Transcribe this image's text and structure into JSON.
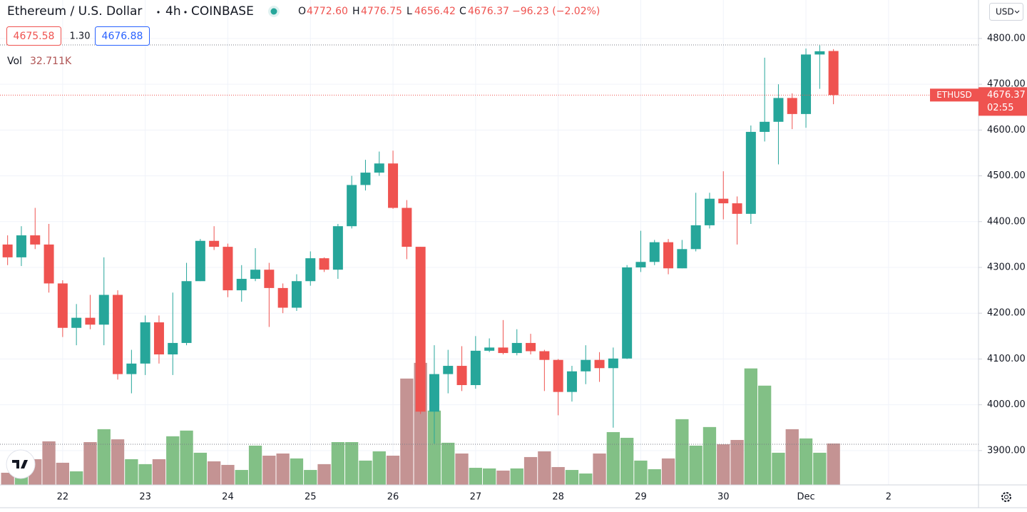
{
  "chart_data": {
    "type": "candlestick",
    "title": "Ethereum / U.S. Dollar",
    "interval": "4h",
    "exchange": "COINBASE",
    "currency": "USD",
    "symbol": "ETHUSD",
    "countdown": "02:55",
    "bid": "4675.58",
    "spread": "1.30",
    "ask": "4676.88",
    "ohlc_letters": [
      "O",
      "H",
      "L",
      "C"
    ],
    "last": {
      "open": "4772.60",
      "high": "4776.75",
      "low": "4656.42",
      "close": "4676.37",
      "change": "−96.23 (−2.02%)"
    },
    "up_color": "#26a69a",
    "down_color": "#ef5350",
    "grid": true,
    "ylim": [
      3825,
      4884
    ],
    "yticks": [
      {
        "value": 3900,
        "label": "3900.00"
      },
      {
        "value": 4000,
        "label": "4000.00"
      },
      {
        "value": 4100,
        "label": "4100.00"
      },
      {
        "value": 4200,
        "label": "4200.00"
      },
      {
        "value": 4300,
        "label": "4300.00"
      },
      {
        "value": 4400,
        "label": "4400.00"
      },
      {
        "value": 4500,
        "label": "4500.00"
      },
      {
        "value": 4600,
        "label": "4600.00"
      },
      {
        "value": 4700,
        "label": "4700.00"
      },
      {
        "value": 4800,
        "label": "4800.00"
      }
    ],
    "categories": [
      null,
      null,
      null,
      null,
      "22",
      null,
      null,
      null,
      null,
      null,
      "23",
      null,
      null,
      null,
      null,
      null,
      "24",
      null,
      null,
      null,
      null,
      null,
      "25",
      null,
      null,
      null,
      null,
      null,
      "26",
      null,
      null,
      null,
      null,
      null,
      "27",
      null,
      null,
      null,
      null,
      null,
      "28",
      null,
      null,
      null,
      null,
      null,
      "29",
      null,
      null,
      null,
      null,
      null,
      "30",
      null,
      null,
      null,
      null,
      null,
      "Dec",
      null,
      null,
      null,
      null,
      null,
      "2",
      null,
      null,
      null,
      null,
      null,
      null
    ],
    "open": [
      4350,
      4322,
      4370,
      4350,
      4265,
      4168,
      4190,
      4175,
      4240,
      4067,
      4090,
      4180,
      4110,
      4135,
      4270,
      4358,
      4345,
      4250,
      4275,
      4295,
      4255,
      4212,
      4270,
      4320,
      4295,
      4390,
      4480,
      4507,
      4527,
      4430,
      4345,
      3985,
      4067,
      4085,
      4043,
      4118,
      4125,
      4113,
      4135,
      4117,
      4098,
      4028,
      4073,
      4098,
      4080,
      4101,
      4300,
      4312,
      4355,
      4298,
      4340,
      4392,
      4450,
      4440,
      4417,
      4596,
      4618,
      4670,
      4635,
      4765,
      4772.6,
      null,
      null,
      null,
      null,
      null,
      null,
      null,
      null,
      null,
      null
    ],
    "high": [
      4370,
      4390,
      4430,
      4395,
      4272,
      4220,
      4240,
      4322,
      4250,
      4120,
      4195,
      4195,
      4245,
      4310,
      4362,
      4390,
      4352,
      4305,
      4342,
      4310,
      4265,
      4285,
      4335,
      4322,
      4395,
      4500,
      4535,
      4553,
      4555,
      4447,
      4345,
      4130,
      4120,
      4128,
      4150,
      4145,
      4185,
      4165,
      4155,
      4120,
      4100,
      4085,
      4130,
      4115,
      4125,
      4305,
      4380,
      4360,
      4362,
      4360,
      4463,
      4463,
      4510,
      4455,
      4610,
      4758,
      4700,
      4680,
      4778,
      4785,
      4776.75,
      null,
      null,
      null,
      null,
      null,
      null,
      null,
      null,
      null,
      null
    ],
    "low": [
      4305,
      4303,
      4340,
      4245,
      4148,
      4130,
      4165,
      4130,
      4055,
      4025,
      4065,
      4090,
      4065,
      4130,
      4270,
      4338,
      4235,
      4225,
      4270,
      4170,
      4200,
      4205,
      4260,
      4290,
      4275,
      4385,
      4468,
      4500,
      4428,
      4318,
      3980,
      3915,
      4025,
      4030,
      4035,
      4115,
      4110,
      4108,
      4110,
      4030,
      3977,
      4007,
      4045,
      4050,
      3950,
      4100,
      4290,
      4305,
      4285,
      4298,
      4335,
      4385,
      4405,
      4350,
      4395,
      4575,
      4525,
      4602,
      4605,
      4690,
      4656.42,
      null,
      null,
      null,
      null,
      null,
      null,
      null,
      null,
      null,
      null
    ],
    "close": [
      4322,
      4370,
      4350,
      4265,
      4168,
      4190,
      4175,
      4240,
      4067,
      4090,
      4180,
      4110,
      4135,
      4270,
      4358,
      4345,
      4250,
      4275,
      4295,
      4255,
      4212,
      4270,
      4320,
      4295,
      4390,
      4480,
      4507,
      4527,
      4430,
      4345,
      3985,
      4067,
      4085,
      4043,
      4118,
      4125,
      4113,
      4135,
      4117,
      4098,
      4028,
      4073,
      4098,
      4080,
      4101,
      4300,
      4312,
      4355,
      4298,
      4340,
      4392,
      4450,
      4440,
      4417,
      4596,
      4618,
      4670,
      4635,
      4765,
      4772,
      4676.37,
      null,
      null,
      null,
      null,
      null,
      null,
      null,
      null,
      null,
      null
    ],
    "volume": {
      "label": "Vol",
      "current_label": "32.711K",
      "up_color": "#82c086",
      "down_color": "#c49393",
      "y2lim": [
        0,
        383
      ],
      "values": [
        9.6,
        18,
        20.3,
        34.4,
        17.5,
        10.7,
        33.8,
        44,
        36,
        20.3,
        16.4,
        20.3,
        38.4,
        42.9,
        25.4,
        18.6,
        15.8,
        11.8,
        31,
        23.1,
        24.8,
        20.9,
        11.8,
        16.4,
        33.8,
        33.8,
        19.2,
        26.5,
        23.1,
        84,
        96.4,
        58.7,
        33.3,
        24.8,
        13.5,
        13,
        11.3,
        13,
        22,
        26.5,
        14.1,
        11.8,
        9,
        24.8,
        41.7,
        37.2,
        19.2,
        12.4,
        20.9,
        51.9,
        31,
        45.7,
        32.1,
        35.5,
        92,
        78.4,
        25.4,
        44,
        36.7,
        25.4,
        32.711,
        null,
        null,
        null,
        null,
        null,
        null,
        null,
        null,
        null,
        null
      ]
    }
  }
}
